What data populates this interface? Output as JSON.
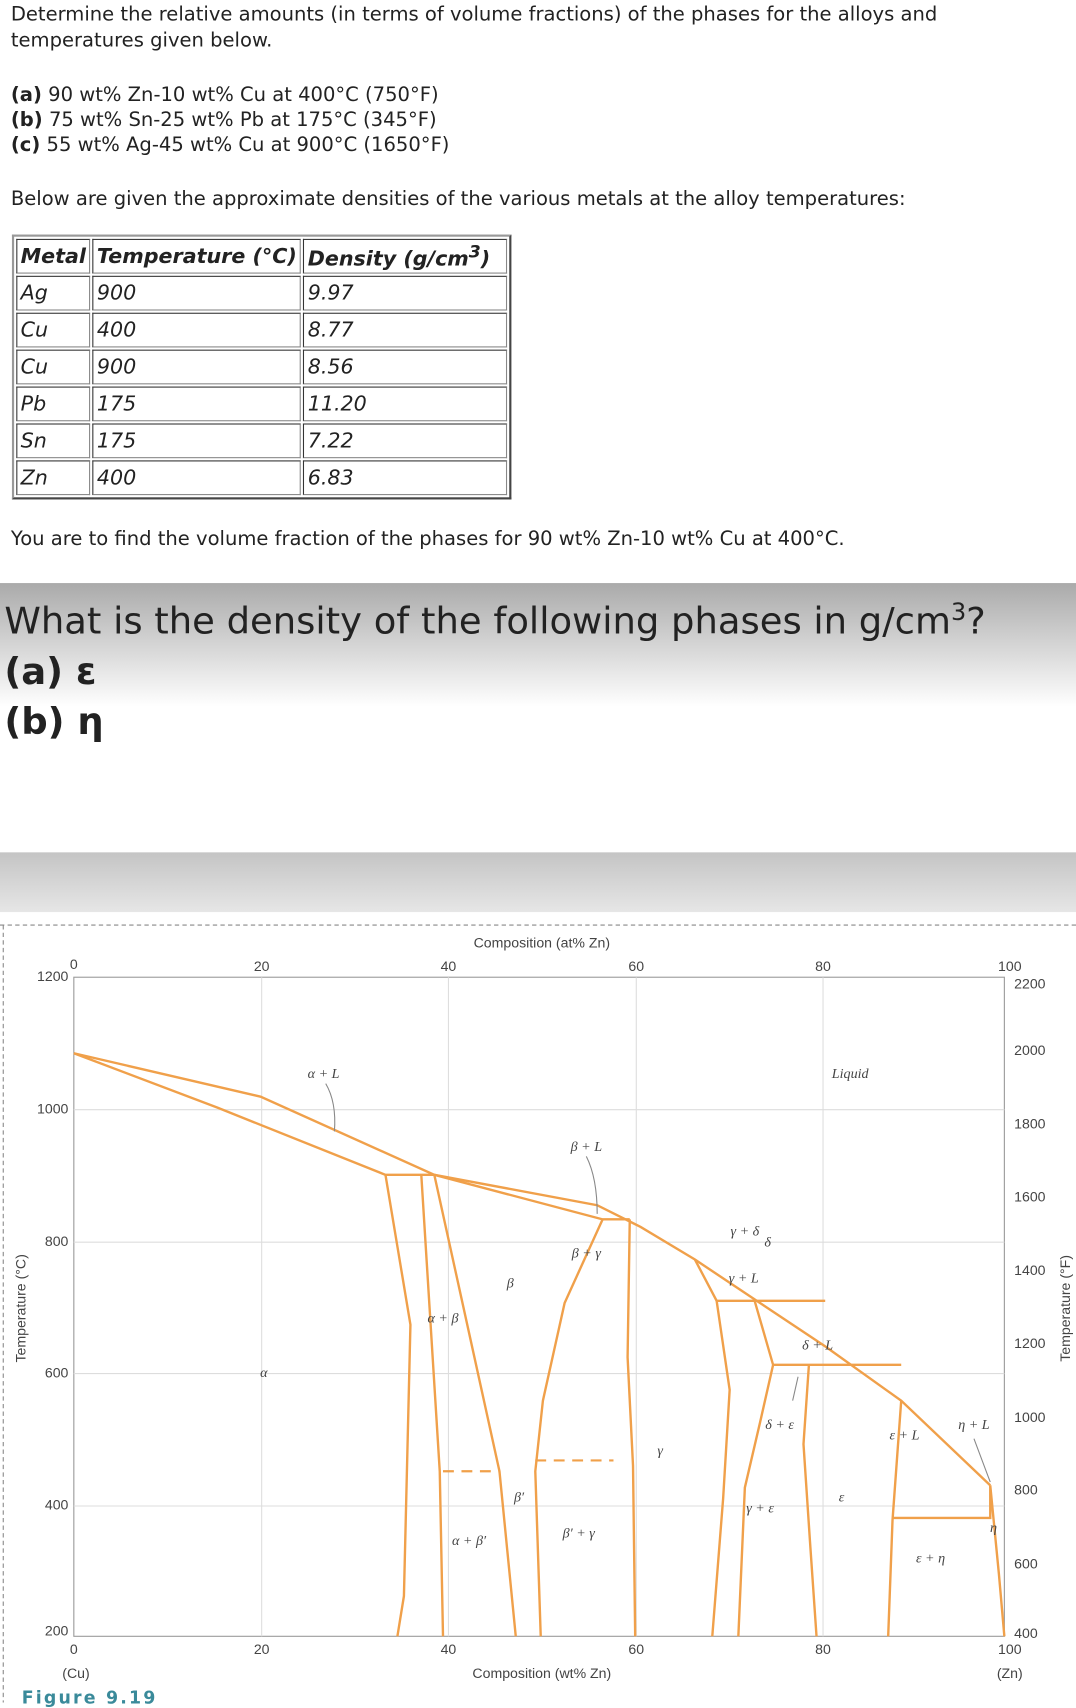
{
  "problem": {
    "intro": "Determine the relative amounts (in terms of volume fractions) of the phases for the alloys and temperatures given below.",
    "items": [
      {
        "label": "(a)",
        "text": "90 wt% Zn-10 wt% Cu at 400°C (750°F)"
      },
      {
        "label": "(b)",
        "text": "75 wt% Sn-25 wt% Pb at 175°C (345°F)"
      },
      {
        "label": "(c)",
        "text": "55 wt% Ag-45 wt% Cu at 900°C (1650°F)"
      }
    ],
    "densities_intro": "Below are given the approximate densities of the various metals at the alloy temperatures:",
    "task": "You are to find the volume fraction of the phases for 90 wt% Zn-10 wt% Cu at 400°C."
  },
  "table": {
    "header": [
      "Metal",
      "Temperature (°C)"
    ],
    "density_header": {
      "text": "Density (g/cm",
      "sup": "3",
      "end": ")"
    },
    "rows": [
      [
        "Ag",
        "900",
        "9.97"
      ],
      [
        "Cu",
        "400",
        "8.77"
      ],
      [
        "Cu",
        "900",
        "8.56"
      ],
      [
        "Pb",
        "175",
        "11.20"
      ],
      [
        "Sn",
        "175",
        "7.22"
      ],
      [
        "Zn",
        "400",
        "6.83"
      ]
    ]
  },
  "question": {
    "text": "What is the density of the following phases in g/cm",
    "sup": "3",
    "end": "?",
    "parts": [
      "(a) ε",
      "(b) η"
    ]
  },
  "figure": {
    "top_axis_title": "Composition (at% Zn)",
    "top_ticks": [
      "0",
      "20",
      "40",
      "60",
      "80",
      "100"
    ],
    "bottom_ticks": [
      "0",
      "20",
      "40",
      "60",
      "80",
      "100"
    ],
    "bottom_axis_title": "Composition (wt% Zn)",
    "bottom_left": "(Cu)",
    "bottom_right": "(Zn)",
    "left_ticks": [
      "1200",
      "1000",
      "800",
      "600",
      "400",
      "200"
    ],
    "left_title": "Temperature (°C)",
    "right_ticks": [
      "2200",
      "2000",
      "1800",
      "1600",
      "1400",
      "1200",
      "1000",
      "800",
      "600",
      "400"
    ],
    "right_title": "Temperature (°F)",
    "phase_labels": [
      "α + L",
      "Liquid",
      "β + L",
      "β",
      "α",
      "γ",
      "β′",
      "ε",
      "η",
      "δ + L",
      "δ + ε",
      "γ + ε",
      "η + L",
      "ε + η",
      "α + β",
      "β + γ",
      "α + β′",
      "β′ + γ",
      "γ + L",
      "γ + δ",
      "δ",
      "ε + L"
    ],
    "caption": "Figure 9.19"
  }
}
